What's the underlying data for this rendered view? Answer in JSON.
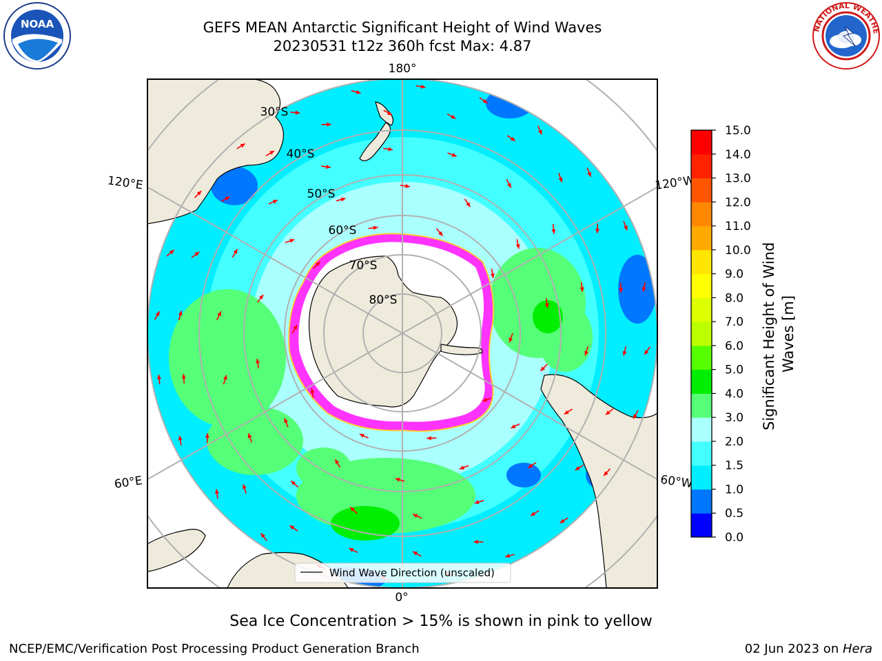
{
  "title": {
    "line1": "GEFS MEAN Antarctic Significant Height of Wind Waves",
    "line2": "20230531 t12z 360h fcst   Max: 4.87"
  },
  "logos": {
    "left": "noaa-logo",
    "right": "national-weather-service-logo"
  },
  "map": {
    "projection": "south-polar-stereographic",
    "lon_labels": [
      {
        "text": "180°",
        "lon": 180
      },
      {
        "text": "120°E",
        "lon": 120
      },
      {
        "text": "120°W",
        "lon": -120
      },
      {
        "text": "60°E",
        "lon": 60
      },
      {
        "text": "60°W",
        "lon": -60
      },
      {
        "text": "0°",
        "lon": 0
      }
    ],
    "lat_labels": [
      "30°S",
      "40°S",
      "50°S",
      "60°S",
      "70°S",
      "80°S"
    ],
    "legend": "Wind Wave Direction (unscaled)",
    "arrow_color": "#ff0000",
    "land_color": "#efebdc",
    "ice_colors": [
      "#ff33ff",
      "#ffcc33",
      "#ffff66"
    ]
  },
  "colorbar": {
    "label": "Significant Height of Wind Waves [m]",
    "label_lines": [
      "Significant Height of Wind",
      "Waves [m]"
    ],
    "ticks": [
      "0.0",
      "0.5",
      "1.0",
      "1.5",
      "2.0",
      "3.0",
      "4.0",
      "5.0",
      "6.0",
      "7.0",
      "8.0",
      "9.0",
      "10.0",
      "11.0",
      "12.0",
      "13.0",
      "14.0",
      "15.0"
    ],
    "colors": [
      "#0000ff",
      "#0077ff",
      "#00eeff",
      "#44ffff",
      "#aaffff",
      "#55ff77",
      "#00ee00",
      "#55ff00",
      "#bbff00",
      "#ddff00",
      "#ffff00",
      "#ffe600",
      "#ffaa00",
      "#ff8800",
      "#ff5500",
      "#ff2200",
      "#ff0000"
    ]
  },
  "caption": "Sea Ice Concentration > 15% is shown in pink to yellow",
  "footer": {
    "left": "NCEP/EMC/Verification Post Processing Product Generation Branch",
    "right_date": "02 Jun 2023 on ",
    "right_host": "Hera"
  }
}
